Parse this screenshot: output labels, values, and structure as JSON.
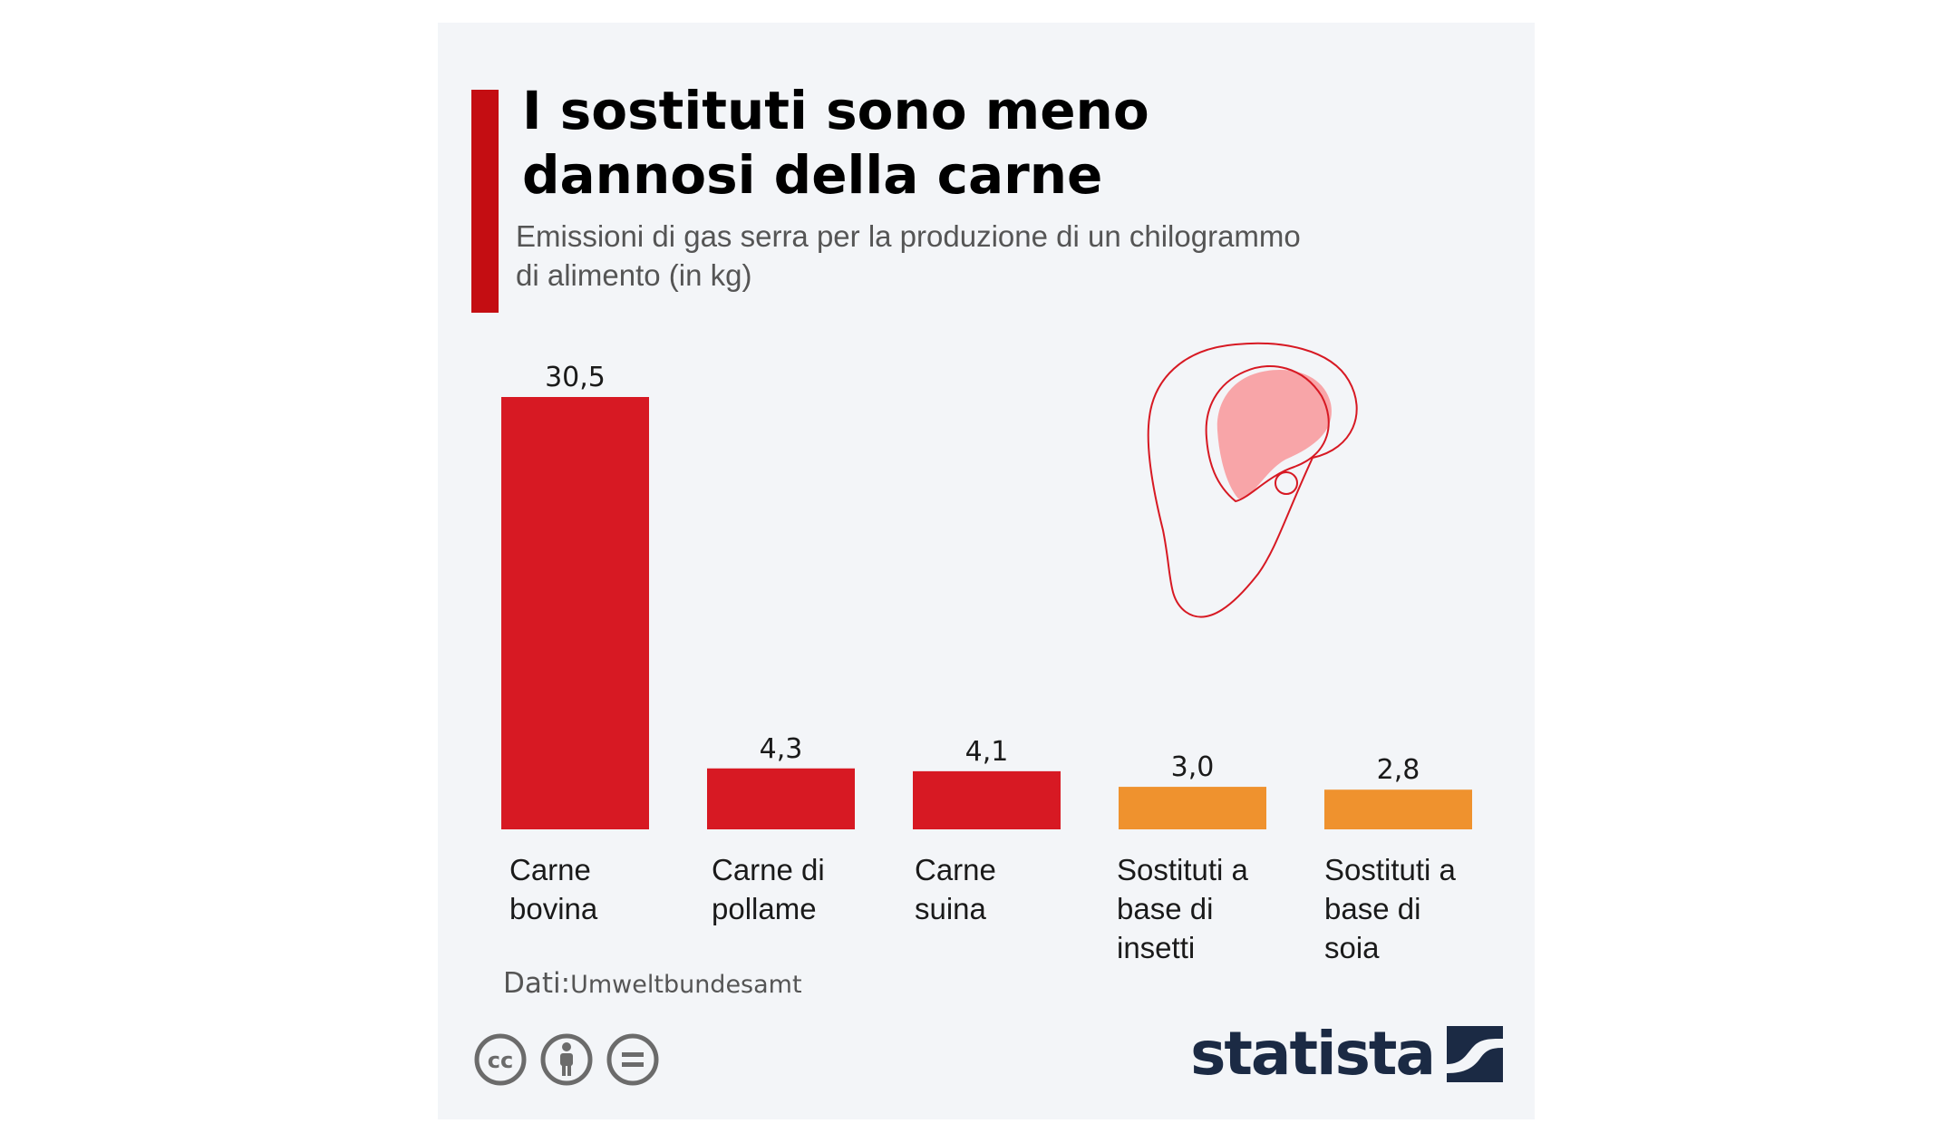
{
  "header": {
    "title_line1": "I sostituti sono meno",
    "title_line2": "dannosi della carne",
    "subtitle_line1": "Emissioni di gas serra per la produzione di un chilogrammo",
    "subtitle_line2": "di alimento (in kg)"
  },
  "colors": {
    "accent": "#c40d12",
    "meat": "#d71923",
    "substitute": "#ef922e",
    "brand": "#1b2a44"
  },
  "chart_data": {
    "type": "bar",
    "title": "I sostituti sono meno dannosi della carne",
    "subtitle": "Emissioni di gas serra per la produzione di un chilogrammo di alimento (in kg)",
    "categories": [
      "Carne bovina",
      "Carne di pollame",
      "Carne suina",
      "Sostituti a base di insetti",
      "Sostituti a base di soia"
    ],
    "category_lines": [
      [
        "Carne",
        "bovina"
      ],
      [
        "Carne di",
        "pollame"
      ],
      [
        "Carne",
        "suina"
      ],
      [
        "Sostituti a",
        "base di",
        "insetti"
      ],
      [
        "Sostituti a",
        "base di",
        "soia"
      ]
    ],
    "values": [
      30.5,
      4.3,
      4.1,
      3.0,
      2.8
    ],
    "value_labels": [
      "30,5",
      "4,3",
      "4,1",
      "3,0",
      "2,8"
    ],
    "bar_groups": [
      "meat",
      "meat",
      "meat",
      "substitute",
      "substitute"
    ],
    "ylim": [
      0,
      30.5
    ],
    "grid": false,
    "legend": "none"
  },
  "illustration": {
    "icon": "steak-icon"
  },
  "footer": {
    "source_prefix": "Dati:",
    "source_name": "Umweltbundesamt",
    "license_icons": [
      "cc-icon",
      "by-icon",
      "nd-icon"
    ],
    "brand_name": "statista",
    "brand_icon": "statista-logo-icon"
  }
}
